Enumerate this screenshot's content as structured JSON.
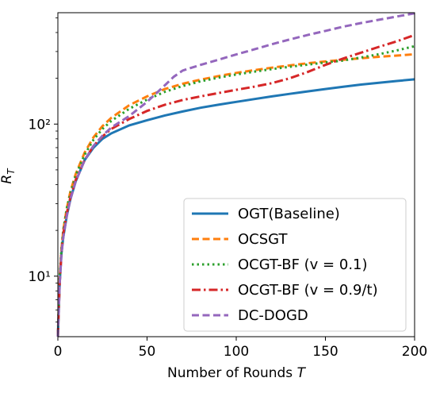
{
  "chart_data": {
    "type": "line",
    "title": "",
    "xlabel": "Number of Rounds T",
    "ylabel": "R_T",
    "xscale": "linear",
    "yscale": "log",
    "xlim": [
      0,
      200
    ],
    "ylim": [
      4,
      540
    ],
    "xticks": [
      0,
      50,
      100,
      150,
      200
    ],
    "xtick_labels": [
      "0",
      "50",
      "100",
      "150",
      "200"
    ],
    "yticks": [
      10,
      100
    ],
    "ytick_labels": [
      "10¹",
      "10²"
    ],
    "grid": false,
    "legend_position": "lower-right",
    "series": [
      {
        "name": "OGT(Baseline)",
        "color": "#1f77b4",
        "dash": "solid",
        "x": [
          0,
          1,
          2,
          3,
          5,
          7,
          10,
          15,
          20,
          25,
          30,
          40,
          50,
          60,
          70,
          80,
          90,
          100,
          110,
          120,
          130,
          140,
          150,
          160,
          170,
          180,
          190,
          200
        ],
        "y": [
          4,
          9,
          14,
          18,
          25,
          32,
          42,
          58,
          70,
          80,
          87,
          98,
          106,
          114,
          121,
          128,
          134,
          140,
          146,
          152,
          158,
          164,
          170,
          176,
          182,
          187,
          192,
          197
        ]
      },
      {
        "name": "OCSGT",
        "color": "#ff7f0e",
        "dash": "dashed",
        "x": [
          0,
          1,
          2,
          3,
          5,
          7,
          10,
          15,
          20,
          25,
          30,
          40,
          50,
          60,
          70,
          80,
          90,
          100,
          110,
          120,
          130,
          140,
          150,
          160,
          170,
          180,
          190,
          200
        ],
        "y": [
          4,
          10,
          15,
          20,
          28,
          36,
          47,
          65,
          82,
          97,
          110,
          133,
          152,
          170,
          184,
          196,
          207,
          217,
          226,
          235,
          243,
          251,
          258,
          265,
          271,
          277,
          282,
          288
        ]
      },
      {
        "name": "OCGT-BF (v = 0.1)",
        "color": "#2ca02c",
        "dash": "dotted",
        "x": [
          0,
          1,
          2,
          3,
          5,
          7,
          10,
          15,
          20,
          25,
          30,
          40,
          50,
          60,
          70,
          80,
          90,
          100,
          110,
          120,
          130,
          140,
          150,
          160,
          170,
          180,
          190,
          200
        ],
        "y": [
          4,
          10,
          15,
          20,
          28,
          35,
          46,
          63,
          79,
          93,
          105,
          126,
          145,
          163,
          178,
          191,
          202,
          212,
          221,
          230,
          238,
          246,
          254,
          262,
          274,
          288,
          305,
          325
        ]
      },
      {
        "name": "OCGT-BF (v = 0.9/t)",
        "color": "#d62728",
        "dash": "dashdot",
        "x": [
          0,
          1,
          2,
          3,
          5,
          7,
          10,
          15,
          20,
          25,
          30,
          40,
          50,
          60,
          70,
          80,
          90,
          100,
          110,
          120,
          130,
          140,
          150,
          160,
          170,
          180,
          190,
          200
        ],
        "y": [
          4,
          9,
          14,
          19,
          26,
          33,
          43,
          58,
          72,
          83,
          93,
          108,
          122,
          134,
          144,
          152,
          160,
          168,
          176,
          186,
          200,
          220,
          245,
          270,
          295,
          322,
          350,
          385
        ]
      },
      {
        "name": "DC-DOGD",
        "color": "#9467bd",
        "dash": "dashed",
        "x": [
          0,
          1,
          2,
          3,
          5,
          7,
          10,
          15,
          20,
          25,
          30,
          40,
          50,
          60,
          65,
          70,
          80,
          90,
          100,
          110,
          120,
          130,
          140,
          150,
          160,
          170,
          180,
          190,
          200
        ],
        "y": [
          4,
          9,
          14,
          18,
          25,
          32,
          42,
          58,
          72,
          84,
          95,
          113,
          140,
          180,
          205,
          225,
          245,
          265,
          287,
          310,
          335,
          360,
          385,
          410,
          437,
          462,
          485,
          510,
          535
        ]
      }
    ]
  }
}
